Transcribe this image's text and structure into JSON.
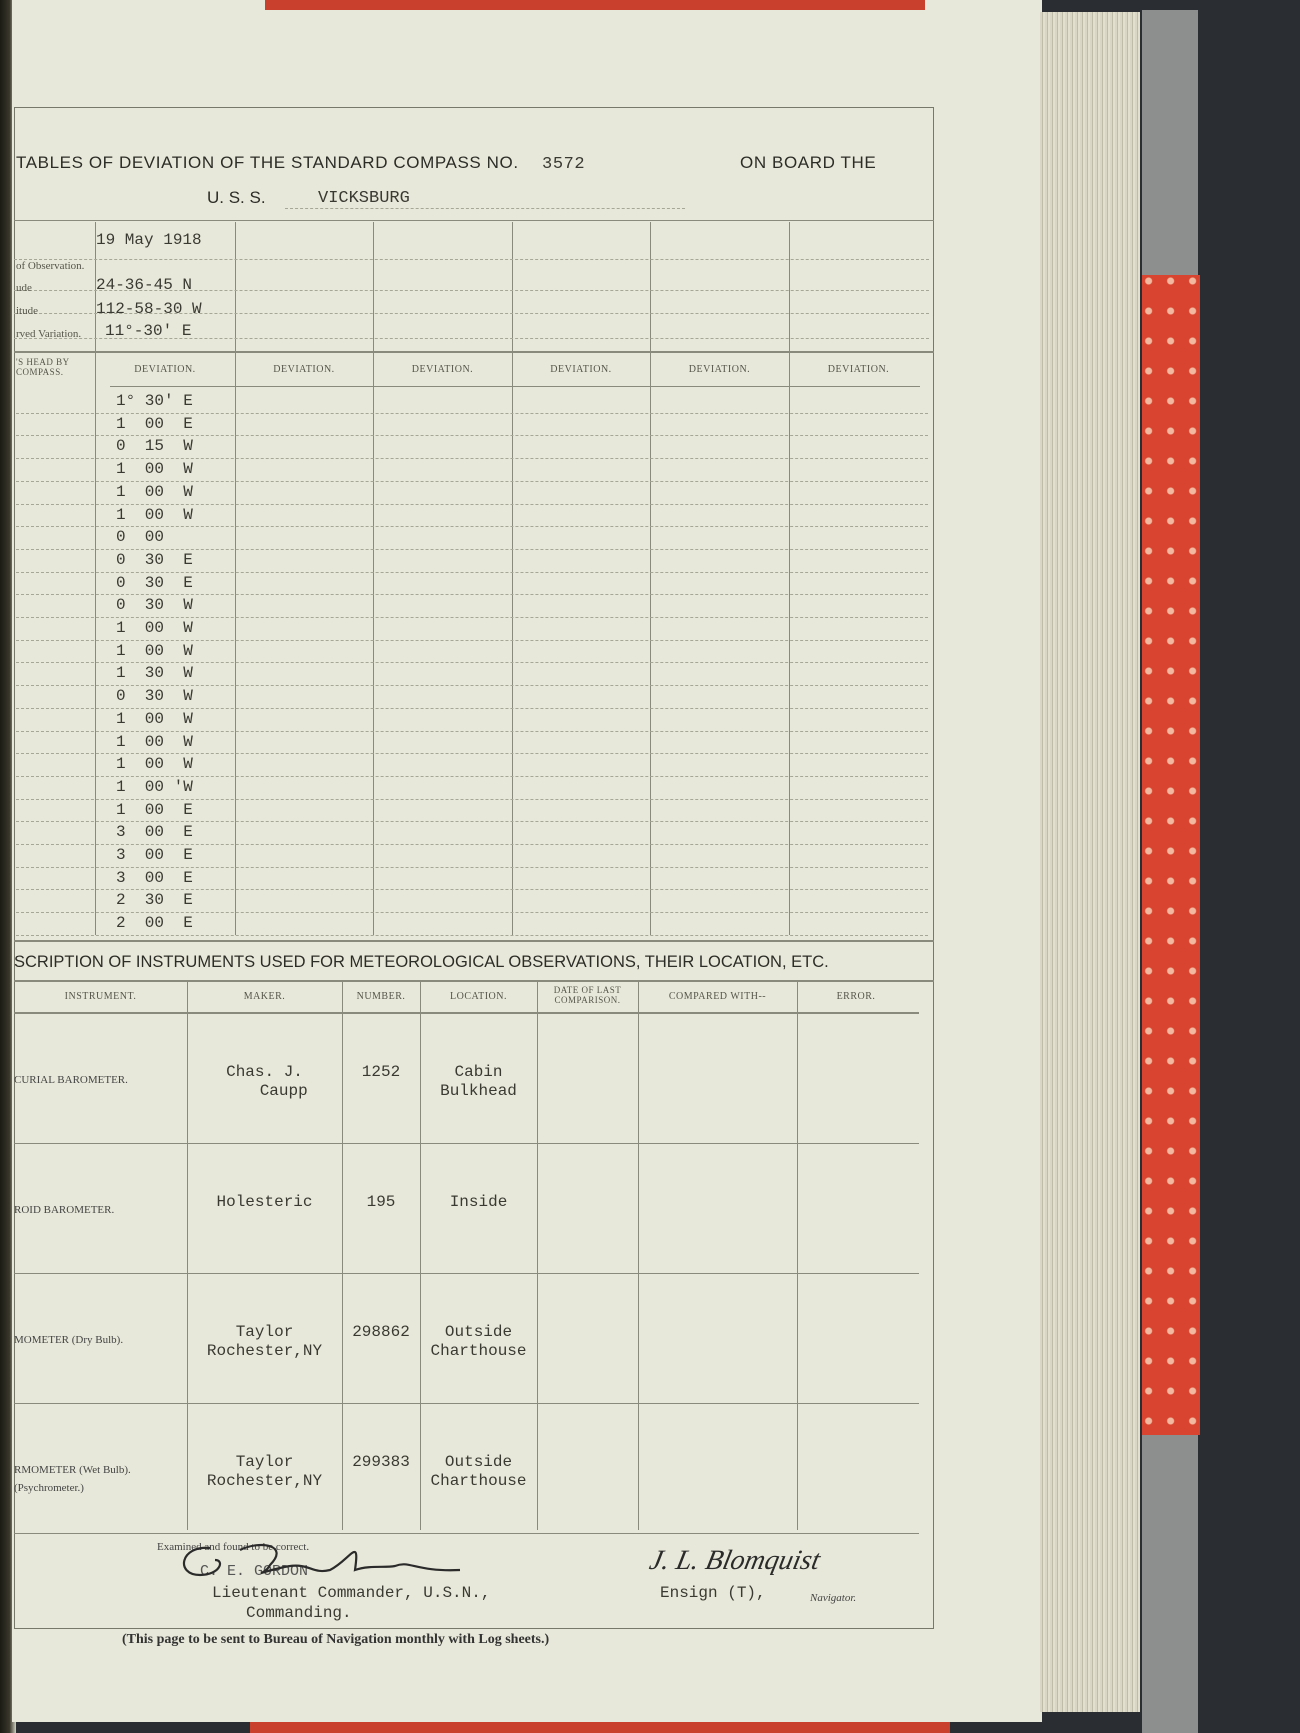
{
  "compass_table": {
    "title_prefix": "TABLES OF DEVIATION OF THE STANDARD COMPASS NO.",
    "compass_number": "3572",
    "title_suffix": "ON BOARD THE",
    "ship_prefix": "U. S. S.",
    "ship_name": "VICKSBURG",
    "row_labels": [
      "",
      "of Observation.",
      "ude",
      "itude",
      "rved Variation."
    ],
    "observation": {
      "date": "19 May 1918",
      "latitude": "24-36-45 N",
      "longitude": "112-58-30 W",
      "variation": "11°-30' E"
    },
    "heading_label": "'S HEAD BY COMPASS.",
    "deviation_headers": [
      "DEVIATION.",
      "DEVIATION.",
      "DEVIATION.",
      "DEVIATION.",
      "DEVIATION.",
      "DEVIATION."
    ],
    "deviations": [
      "1° 30' E",
      "1  00  E",
      "0  15  W",
      "1  00  W",
      "1  00  W",
      "1  00  W",
      "0  00",
      "0  30  E",
      "0  30  E",
      "0  30  W",
      "1  00  W",
      "1  00  W",
      "1  30  W",
      "0  30  W",
      "1  00  W",
      "1  00  W",
      "1  00  W",
      "1  00 'W",
      "1  00  E",
      "3  00  E",
      "3  00  E",
      "3  00  E",
      "2  30  E",
      "2  00  E"
    ]
  },
  "instruments": {
    "title": "SCRIPTION OF INSTRUMENTS USED FOR METEOROLOGICAL OBSERVATIONS, THEIR LOCATION, ETC.",
    "headers": [
      "INSTRUMENT.",
      "MAKER.",
      "NUMBER.",
      "LOCATION.",
      "DATE OF LAST COMPARISON.",
      "COMPARED WITH--",
      "ERROR."
    ],
    "rows": [
      {
        "instrument": "CURIAL BAROMETER.",
        "maker": "Chas. J.\n    Caupp",
        "number": "1252",
        "location": "Cabin\nBulkhead",
        "date": "",
        "compared": "",
        "error": ""
      },
      {
        "instrument": "ROID BAROMETER.",
        "maker": "Holesteric",
        "number": "195",
        "location": "Inside",
        "date": "",
        "compared": "",
        "error": ""
      },
      {
        "instrument": "MOMETER (Dry Bulb).",
        "maker": "Taylor\nRochester,NY",
        "number": "298862",
        "location": "Outside\nCharthouse",
        "date": "",
        "compared": "",
        "error": ""
      },
      {
        "instrument": "RMOMETER (Wet Bulb).\n(Psychrometer.)",
        "maker": "Taylor\nRochester,NY",
        "number": "299383",
        "location": "Outside\nCharthouse",
        "date": "",
        "compared": "",
        "error": ""
      }
    ]
  },
  "signatures": {
    "examined": "Examined and found to be correct.",
    "commander_typed": "C. E. GORDON",
    "commander_signature": "C E Gordon",
    "commander_title": "Lieutenant Commander, U.S.N.,",
    "commander_role": "Commanding.",
    "navigator_signature": "J. L. Blomquist",
    "navigator_title": "Ensign (T),",
    "navigator_role": "Navigator."
  },
  "footer_note": "(This page to be sent to Bureau of Navigation monthly with Log sheets.)",
  "colors": {
    "paper": "#e8e8da",
    "ink": "#3a3a33",
    "marble": "#d8442f"
  }
}
